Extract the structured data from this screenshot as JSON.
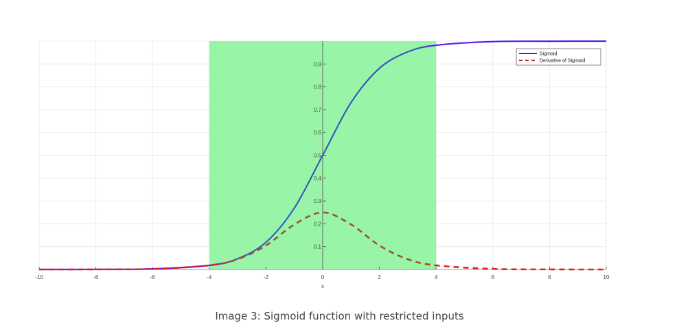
{
  "chart_data": {
    "type": "line",
    "xlabel": "x",
    "ylabel": "",
    "xlim": [
      -10,
      10
    ],
    "ylim": [
      0,
      1
    ],
    "grid": true,
    "x_ticks": [
      "-10",
      "-8",
      "-6",
      "-4",
      "-2",
      "0",
      "2",
      "4",
      "6",
      "8",
      "10"
    ],
    "y_ticks": [
      "0.1",
      "0.2",
      "0.3",
      "0.4",
      "0.5",
      "0.6",
      "0.7",
      "0.8",
      "0.9"
    ],
    "highlight_region": {
      "x_from": -4,
      "x_to": 4,
      "color": "#98f5a8"
    },
    "legend_position": "top-right",
    "series": [
      {
        "name": "Sigmoid",
        "function": "1/(1+exp(-x))",
        "style": "solid",
        "colors": [
          "#5a1cf0",
          "#3a5ab8"
        ],
        "x": [
          -10,
          -8,
          -6,
          -4,
          -3,
          -2,
          -1,
          0,
          1,
          2,
          3,
          4,
          6,
          8,
          10
        ],
        "values": [
          0.0,
          0.0003,
          0.0025,
          0.018,
          0.047,
          0.119,
          0.269,
          0.5,
          0.731,
          0.881,
          0.953,
          0.982,
          0.998,
          0.9997,
          1.0
        ]
      },
      {
        "name": "Derivative of Sigmoid",
        "function": "s(x)*(1-s(x))",
        "style": "dashed",
        "colors": [
          "#e02020",
          "#a0522d"
        ],
        "x": [
          -10,
          -8,
          -6,
          -4,
          -3,
          -2,
          -1,
          0,
          1,
          2,
          3,
          4,
          6,
          8,
          10
        ],
        "values": [
          0.0,
          0.0003,
          0.0025,
          0.018,
          0.045,
          0.105,
          0.197,
          0.25,
          0.197,
          0.105,
          0.045,
          0.018,
          0.0025,
          0.0003,
          0.0
        ]
      }
    ]
  },
  "caption": "Image 3: Sigmoid function with restricted inputs"
}
